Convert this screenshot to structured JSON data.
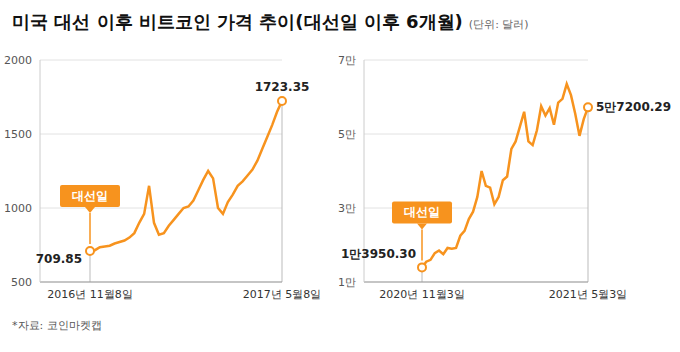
{
  "title": "미국 대선 이후 비트코인 가격 추이(대선일 이후 6개월)",
  "subtitle": "(단위: 달러)",
  "source": "*자료: 코인마켓캡",
  "chart_data": [
    {
      "type": "line",
      "color": "#f7931e",
      "grid": true,
      "annotation": "대선일",
      "categories": [
        "2016년 11월8일",
        null,
        null,
        null,
        null,
        null,
        null,
        null,
        null,
        null,
        null,
        null,
        null,
        null,
        null,
        null,
        null,
        null,
        null,
        null,
        null,
        null,
        null,
        null,
        null,
        null,
        null,
        null,
        null,
        null,
        null,
        null,
        null,
        null,
        null,
        null,
        null,
        null,
        null,
        "2017년 5월8일"
      ],
      "values": [
        709.85,
        715,
        735,
        740,
        745,
        760,
        770,
        780,
        800,
        830,
        900,
        960,
        1150,
        900,
        820,
        830,
        880,
        920,
        960,
        1000,
        1010,
        1050,
        1120,
        1190,
        1250,
        1200,
        1000,
        960,
        1040,
        1090,
        1150,
        1180,
        1220,
        1260,
        1320,
        1400,
        1480,
        1560,
        1650,
        1723.35
      ],
      "value_labels": [
        "709.85",
        null,
        null,
        null,
        null,
        null,
        null,
        null,
        null,
        null,
        null,
        null,
        null,
        null,
        null,
        null,
        null,
        null,
        null,
        null,
        null,
        null,
        null,
        null,
        null,
        null,
        null,
        null,
        null,
        null,
        null,
        null,
        null,
        null,
        null,
        null,
        null,
        null,
        null,
        "1723.35"
      ],
      "ylim": [
        500,
        2000
      ],
      "yticks": [
        500,
        1000,
        1500,
        2000
      ]
    },
    {
      "type": "line",
      "color": "#f7931e",
      "grid": true,
      "annotation": "대선일",
      "categories": [
        "2020년 11월3일",
        null,
        null,
        null,
        null,
        null,
        null,
        null,
        null,
        null,
        null,
        null,
        null,
        null,
        null,
        null,
        null,
        null,
        null,
        null,
        null,
        null,
        null,
        null,
        null,
        null,
        null,
        null,
        null,
        null,
        null,
        null,
        null,
        null,
        null,
        null,
        null,
        null,
        null,
        "2021년 5월3일"
      ],
      "values": [
        13950.3,
        15500,
        16000,
        17800,
        18500,
        17500,
        19200,
        19000,
        19200,
        22500,
        23800,
        27000,
        29000,
        33000,
        40000,
        36000,
        35500,
        31000,
        33000,
        37500,
        38500,
        46000,
        48000,
        52000,
        56000,
        48000,
        47000,
        51000,
        57500,
        55000,
        57000,
        52500,
        58500,
        59500,
        63500,
        60500,
        55500,
        49500,
        54000,
        57200.29
      ],
      "value_labels": [
        "1만3950.30",
        null,
        null,
        null,
        null,
        null,
        null,
        null,
        null,
        null,
        null,
        null,
        null,
        null,
        null,
        null,
        null,
        null,
        null,
        null,
        null,
        null,
        null,
        null,
        null,
        null,
        null,
        null,
        null,
        null,
        null,
        null,
        null,
        null,
        null,
        null,
        null,
        null,
        null,
        "5만7200.29"
      ],
      "ylim": [
        10000,
        70000
      ],
      "yticks": [
        {
          "value": 10000,
          "label": "1만"
        },
        {
          "value": 30000,
          "label": "3만"
        },
        {
          "value": 50000,
          "label": "5만"
        },
        {
          "value": 70000,
          "label": "7만"
        }
      ]
    }
  ]
}
